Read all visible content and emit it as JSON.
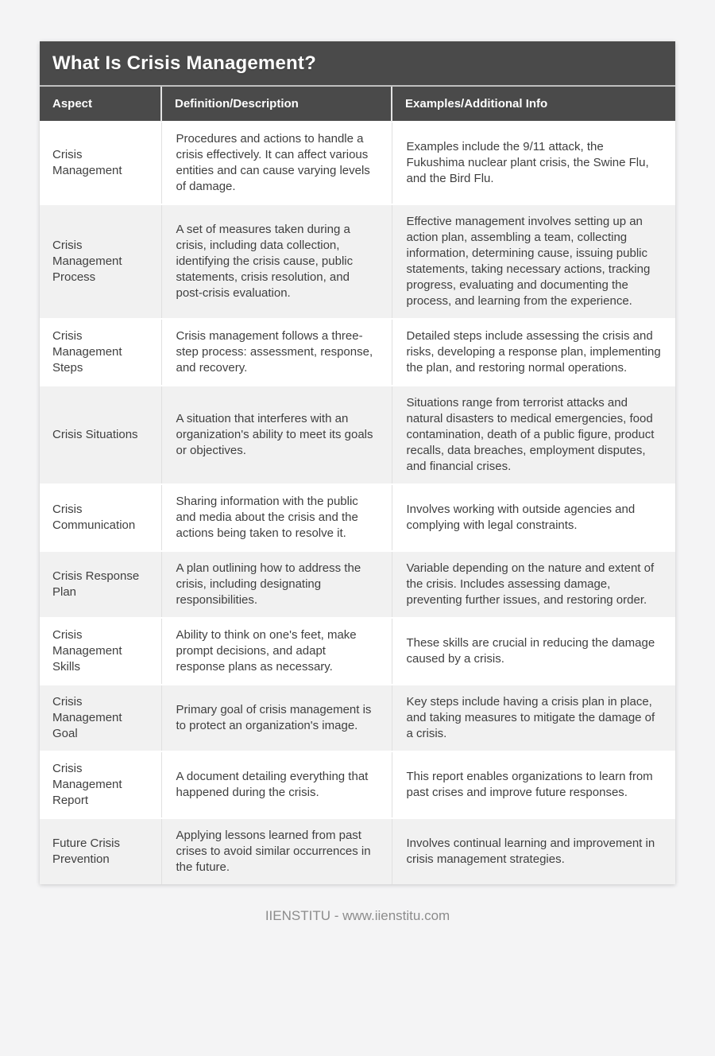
{
  "page": {
    "title": "What Is Crisis Management?",
    "footer": "IIENSTITU - www.iienstitu.com"
  },
  "table": {
    "columns": [
      "Aspect",
      "Definition/Description",
      "Examples/Additional Info"
    ],
    "rows": [
      {
        "aspect": "Crisis Management",
        "definition": "Procedures and actions to handle a crisis effectively. It can affect various entities and can cause varying levels of damage.",
        "examples": "Examples include the 9/11 attack, the Fukushima nuclear plant crisis, the Swine Flu, and the Bird Flu."
      },
      {
        "aspect": "Crisis Management Process",
        "definition": "A set of measures taken during a crisis, including data collection, identifying the crisis cause, public statements, crisis resolution, and post-crisis evaluation.",
        "examples": "Effective management involves setting up an action plan, assembling a team, collecting information, determining cause, issuing public statements, taking necessary actions, tracking progress, evaluating and documenting the process, and learning from the experience."
      },
      {
        "aspect": "Crisis Management Steps",
        "definition": "Crisis management follows a three-step process: assessment, response, and recovery.",
        "examples": "Detailed steps include assessing the crisis and risks, developing a response plan, implementing the plan, and restoring normal operations."
      },
      {
        "aspect": "Crisis Situations",
        "definition": "A situation that interferes with an organization's ability to meet its goals or objectives.",
        "examples": "Situations range from terrorist attacks and natural disasters to medical emergencies, food contamination, death of a public figure, product recalls, data breaches, employment disputes, and financial crises."
      },
      {
        "aspect": "Crisis Communication",
        "definition": "Sharing information with the public and media about the crisis and the actions being taken to resolve it.",
        "examples": "Involves working with outside agencies and complying with legal constraints."
      },
      {
        "aspect": "Crisis Response Plan",
        "definition": "A plan outlining how to address the crisis, including designating responsibilities.",
        "examples": "Variable depending on the nature and extent of the crisis. Includes assessing damage, preventing further issues, and restoring order."
      },
      {
        "aspect": "Crisis Management Skills",
        "definition": "Ability to think on one's feet, make prompt decisions, and adapt response plans as necessary.",
        "examples": "These skills are crucial in reducing the damage caused by a crisis."
      },
      {
        "aspect": "Crisis Management Goal",
        "definition": "Primary goal of crisis management is to protect an organization's image.",
        "examples": "Key steps include having a crisis plan in place, and taking measures to mitigate the damage of a crisis."
      },
      {
        "aspect": "Crisis Management Report",
        "definition": "A document detailing everything that happened during the crisis.",
        "examples": "This report enables organizations to learn from past crises and improve future responses."
      },
      {
        "aspect": "Future Crisis Prevention",
        "definition": "Applying lessons learned from past crises to avoid similar occurrences in the future.",
        "examples": "Involves continual learning and improvement in crisis management strategies."
      }
    ]
  },
  "colors": {
    "page_bg": "#f4f4f5",
    "header_bg": "#4a4a4a",
    "header_text": "#ffffff",
    "row_bg": "#ffffff",
    "row_alt_bg": "#f1f1f1",
    "cell_text": "#3f3f3f",
    "cell_border": "#e0e0e0",
    "row_divider": "#ffffff",
    "footer_text": "#8c8c8c"
  }
}
